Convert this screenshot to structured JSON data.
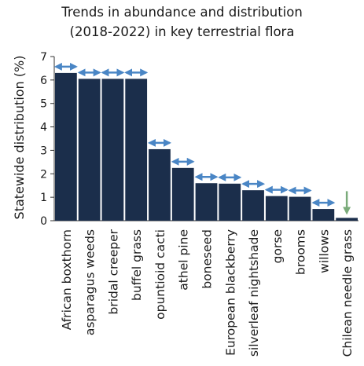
{
  "chart_data": {
    "type": "bar",
    "title_lines": [
      "Trends in abundance and distribution",
      "(2018-2022) in key terrestrial flora"
    ],
    "xlabel": "",
    "ylabel": "Statewide distribution (%)",
    "ylim": [
      0,
      7
    ],
    "yticks": [
      0,
      1,
      2,
      3,
      4,
      5,
      6,
      7
    ],
    "grid": false,
    "bar_color": "#1b2e4b",
    "categories": [
      "African boxthorn",
      "asparagus weeds",
      "bridal creeper",
      "buffel grass",
      "opuntioid cacti",
      "athel pine",
      "boneseed",
      "European blackberry",
      "silverleaf nightshade",
      "gorse",
      "brooms",
      "willows",
      "Chilean needle grass"
    ],
    "values": [
      6.3,
      6.05,
      6.05,
      6.05,
      3.05,
      2.25,
      1.6,
      1.58,
      1.3,
      1.05,
      1.02,
      0.5,
      0.12
    ],
    "trends": [
      "stable",
      "stable",
      "stable",
      "stable",
      "stable",
      "stable",
      "stable",
      "stable",
      "stable",
      "stable",
      "stable",
      "stable",
      "decreasing"
    ],
    "trend_colors": {
      "stable": "#4a86c5",
      "decreasing": "#7aab7a"
    }
  }
}
